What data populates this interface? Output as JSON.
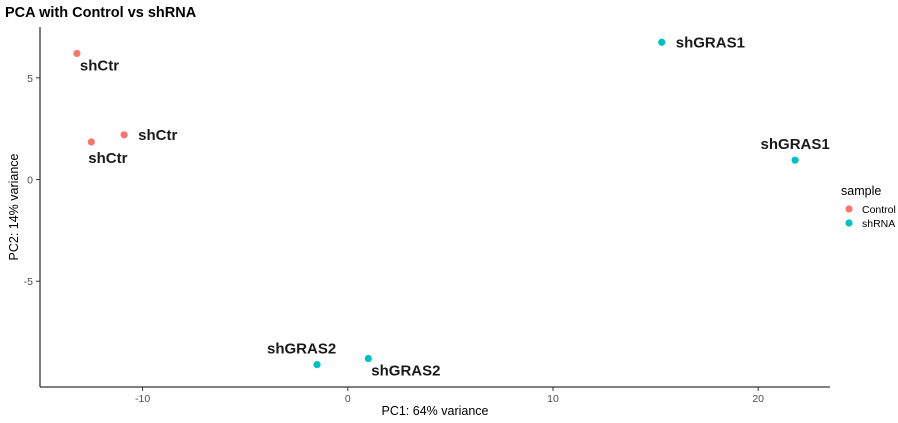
{
  "chart_data": {
    "type": "scatter",
    "title": "PCA with Control vs shRNA",
    "xlabel": "PC1: 64% variance",
    "ylabel": "PC2: 14% variance",
    "xlim": [
      -15,
      23.5
    ],
    "ylim": [
      -10.2,
      7.5
    ],
    "xticks": [
      -10,
      0,
      10,
      20
    ],
    "xtick_labels": [
      "-10",
      "0",
      "10",
      "20"
    ],
    "yticks": [
      -5,
      0,
      5
    ],
    "ytick_labels": [
      "-5",
      "0",
      "5"
    ],
    "grid": false,
    "legend": {
      "title": "sample",
      "placement": "right",
      "entries": [
        {
          "label": "Control",
          "color": "#F8766D"
        },
        {
          "label": "shRNA",
          "color": "#00BFC4"
        }
      ]
    },
    "series": [
      {
        "name": "Control",
        "color": "#F8766D",
        "points": [
          {
            "x": -13.2,
            "y": 6.2,
            "label": "shCtr",
            "label_pos": "below-right"
          },
          {
            "x": -10.9,
            "y": 2.2,
            "label": "shCtr",
            "label_pos": "right"
          },
          {
            "x": -12.5,
            "y": 1.85,
            "label": "shCtr",
            "label_pos": "below"
          }
        ]
      },
      {
        "name": "shRNA",
        "color": "#00BFC4",
        "points": [
          {
            "x": 15.3,
            "y": 6.75,
            "label": "shGRAS1",
            "label_pos": "right"
          },
          {
            "x": 21.8,
            "y": 0.95,
            "label": "shGRAS1",
            "label_pos": "above"
          },
          {
            "x": -1.5,
            "y": -9.1,
            "label": "shGRAS2",
            "label_pos": "above-left"
          },
          {
            "x": 1.0,
            "y": -8.8,
            "label": "shGRAS2",
            "label_pos": "below-right"
          }
        ]
      }
    ]
  }
}
